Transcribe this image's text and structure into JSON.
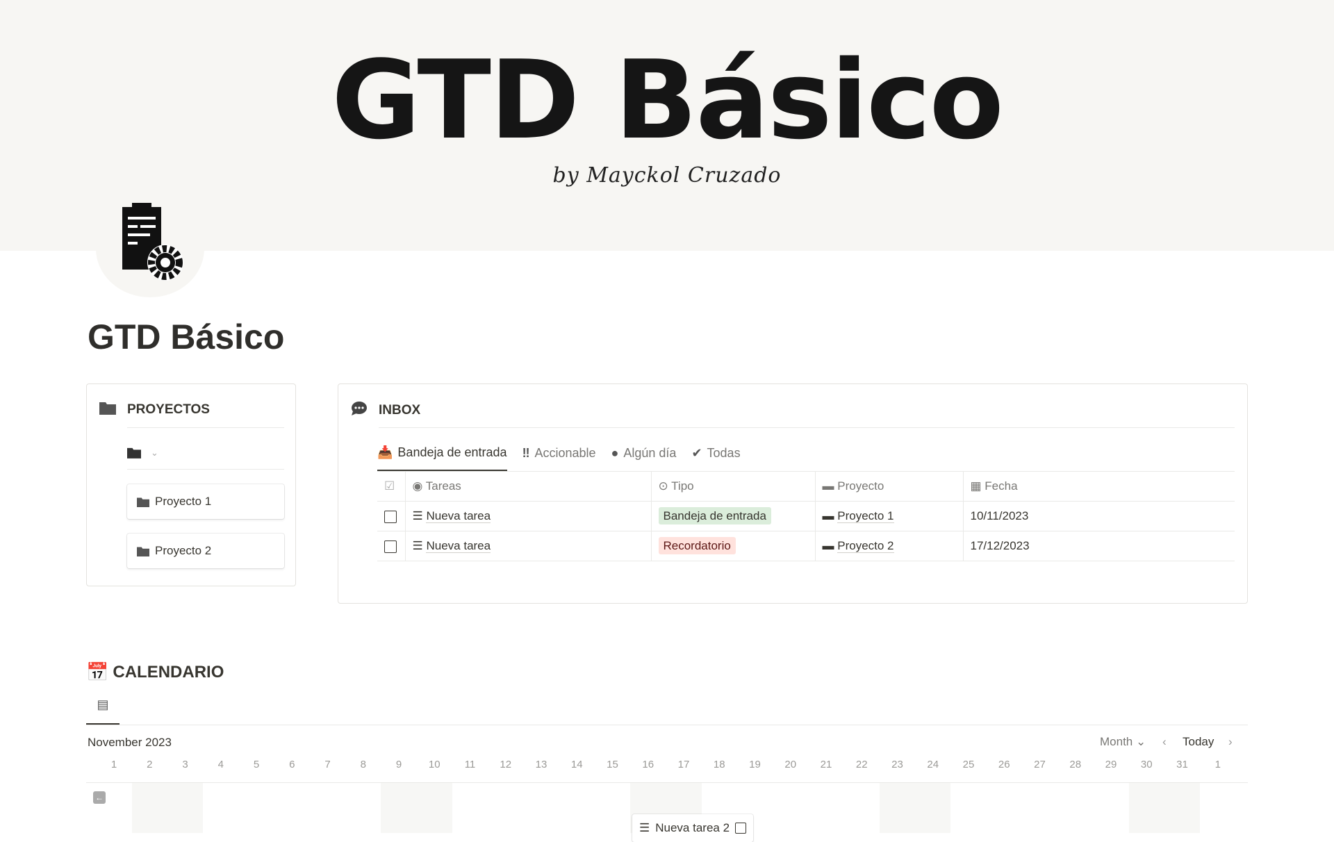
{
  "banner": {
    "title": "GTD Básico",
    "subtitle": "by Mayckol Cruzado"
  },
  "page": {
    "title": "GTD Básico"
  },
  "proyectos": {
    "title": "PROYECTOS",
    "items": [
      "Proyecto 1",
      "Proyecto 2"
    ]
  },
  "inbox": {
    "title": "INBOX",
    "tabs": [
      "Bandeja de entrada",
      "Accionable",
      "Algún día",
      "Todas"
    ],
    "columns": [
      "Tareas",
      "Tipo",
      "Proyecto",
      "Fecha"
    ],
    "rows": [
      {
        "task": "Nueva tarea",
        "tipo": "Bandeja de entrada",
        "proyecto": "Proyecto 1",
        "fecha": "10/11/2023"
      },
      {
        "task": "Nueva tarea",
        "tipo": "Recordatorio",
        "proyecto": "Proyecto 2",
        "fecha": "17/12/2023"
      }
    ],
    "colors": {
      "bandeja_bg": "#dbeddb",
      "recordatorio_bg": "#ffe2dd"
    }
  },
  "calendario": {
    "title": "CALENDARIO",
    "month": "November 2023",
    "view": "Month",
    "today": "Today",
    "days": [
      "1",
      "2",
      "3",
      "4",
      "5",
      "6",
      "7",
      "8",
      "9",
      "10",
      "11",
      "12",
      "13",
      "14",
      "15",
      "16",
      "17",
      "18",
      "19",
      "20",
      "21",
      "22",
      "23",
      "24",
      "25",
      "26",
      "27",
      "28",
      "29",
      "30",
      "31",
      "1"
    ],
    "event": "Nueva tarea 2"
  }
}
